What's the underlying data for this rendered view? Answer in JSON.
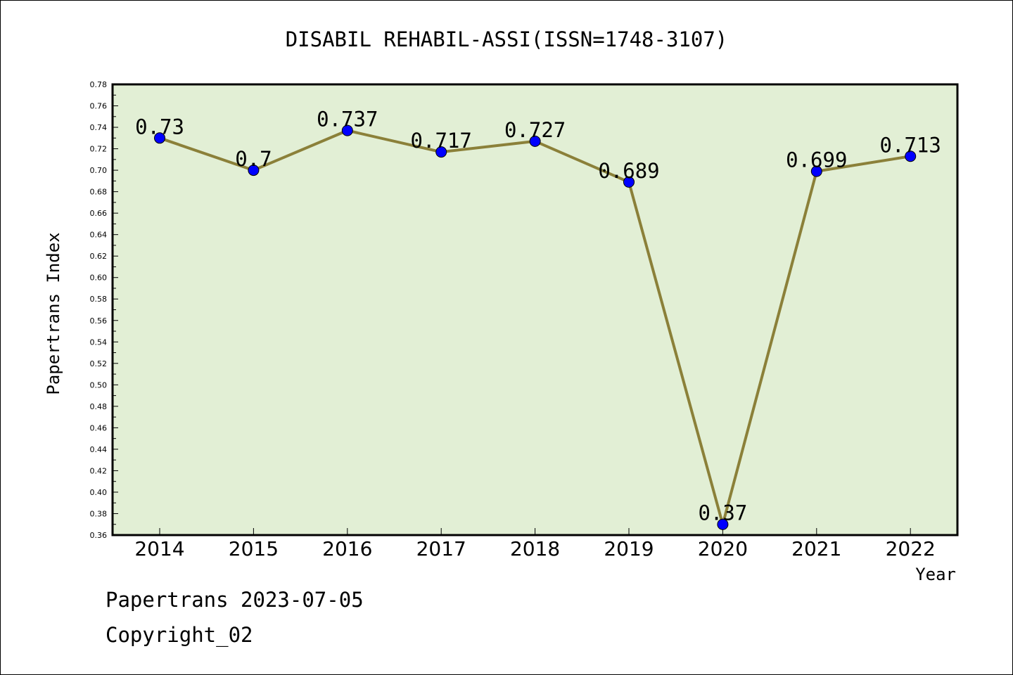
{
  "chart_data": {
    "type": "line",
    "title": "DISABIL REHABIL-ASSI(ISSN=1748-3107)",
    "xlabel": "Year",
    "ylabel": "Papertrans Index",
    "categories": [
      "2014",
      "2015",
      "2016",
      "2017",
      "2018",
      "2019",
      "2020",
      "2021",
      "2022"
    ],
    "values": [
      0.73,
      0.7,
      0.737,
      0.717,
      0.727,
      0.689,
      0.37,
      0.699,
      0.713
    ],
    "data_labels": [
      "0.73",
      "0.7",
      "0.737",
      "0.717",
      "0.727",
      "0.689",
      "0.37",
      "0.699",
      "0.713"
    ],
    "ylim": [
      0.36,
      0.78
    ],
    "yticks": [
      "0.36",
      "0.38",
      "0.40",
      "0.42",
      "0.44",
      "0.46",
      "0.48",
      "0.50",
      "0.52",
      "0.54",
      "0.56",
      "0.58",
      "0.60",
      "0.62",
      "0.64",
      "0.66",
      "0.68",
      "0.70",
      "0.72",
      "0.74",
      "0.76",
      "0.78"
    ],
    "grid": false,
    "colors": {
      "plot_background": "#e2efd5",
      "line": "#8b8039",
      "marker": "#0000ff"
    }
  },
  "footer": {
    "date_line": "Papertrans 2023-07-05",
    "copyright": "Copyright_02"
  }
}
